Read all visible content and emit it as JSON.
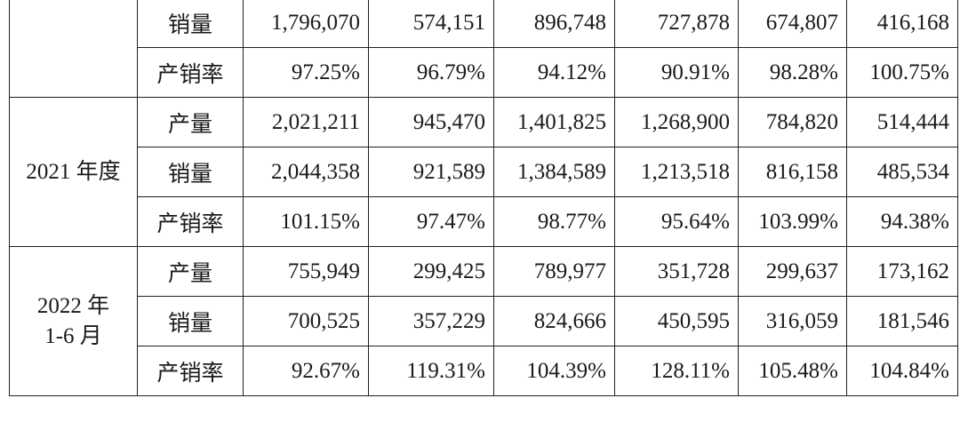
{
  "table": {
    "groups": [
      {
        "period_lines": [],
        "rows": [
          {
            "metric": "销量",
            "values": [
              "1,796,070",
              "574,151",
              "896,748",
              "727,878",
              "674,807",
              "416,168"
            ]
          },
          {
            "metric": "产销率",
            "values": [
              "97.25%",
              "96.79%",
              "94.12%",
              "90.91%",
              "98.28%",
              "100.75%"
            ]
          }
        ]
      },
      {
        "period_lines": [
          "2021 年度"
        ],
        "rows": [
          {
            "metric": "产量",
            "values": [
              "2,021,211",
              "945,470",
              "1,401,825",
              "1,268,900",
              "784,820",
              "514,444"
            ]
          },
          {
            "metric": "销量",
            "values": [
              "2,044,358",
              "921,589",
              "1,384,589",
              "1,213,518",
              "816,158",
              "485,534"
            ]
          },
          {
            "metric": "产销率",
            "values": [
              "101.15%",
              "97.47%",
              "98.77%",
              "95.64%",
              "103.99%",
              "94.38%"
            ]
          }
        ]
      },
      {
        "period_lines": [
          "2022 年",
          "1-6 月"
        ],
        "rows": [
          {
            "metric": "产量",
            "values": [
              "755,949",
              "299,425",
              "789,977",
              "351,728",
              "299,637",
              "173,162"
            ]
          },
          {
            "metric": "销量",
            "values": [
              "700,525",
              "357,229",
              "824,666",
              "450,595",
              "316,059",
              "181,546"
            ]
          },
          {
            "metric": "产销率",
            "values": [
              "92.67%",
              "119.31%",
              "104.39%",
              "128.11%",
              "105.48%",
              "104.84%"
            ]
          }
        ]
      }
    ]
  }
}
